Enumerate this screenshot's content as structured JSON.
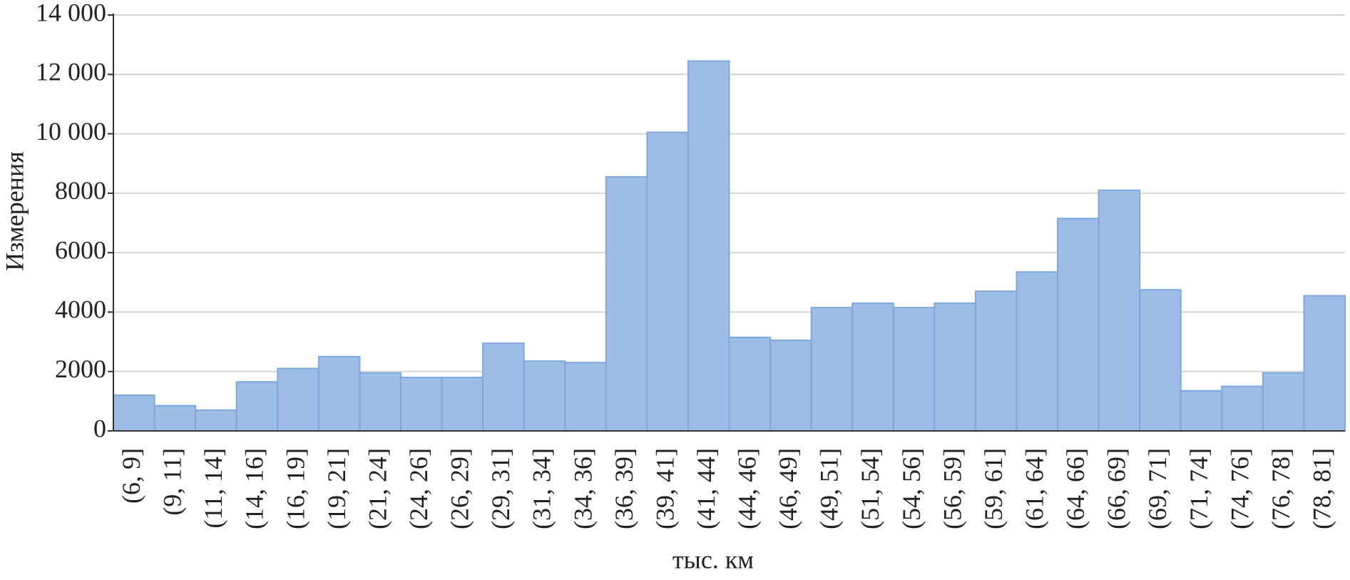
{
  "chart_data": {
    "type": "bar",
    "xlabel": "тыс. км",
    "ylabel": "Измерения",
    "categories": [
      "(6, 9]",
      "(9, 11]",
      "(11, 14]",
      "(14, 16]",
      "(16, 19]",
      "(19, 21]",
      "(21, 24]",
      "(24, 26]",
      "(26, 29]",
      "(29, 31]",
      "(31, 34]",
      "(34, 36]",
      "(36, 39]",
      "(39, 41]",
      "(41, 44]",
      "(44, 46]",
      "(46, 49]",
      "(49, 51]",
      "(51, 54]",
      "(54, 56]",
      "(56, 59]",
      "(59, 61]",
      "(61, 64]",
      "(64, 66]",
      "(66, 69]",
      "(69, 71]",
      "(71, 74]",
      "(74, 76]",
      "(76, 78]",
      "(78, 81]"
    ],
    "values": [
      1200,
      850,
      700,
      1650,
      2100,
      2500,
      1950,
      1800,
      1800,
      2950,
      2350,
      2300,
      8550,
      10050,
      12450,
      3150,
      3050,
      4150,
      4300,
      4150,
      4300,
      4700,
      5350,
      7150,
      8100,
      4750,
      1350,
      1500,
      1950,
      4550
    ],
    "color": "#9dbde6",
    "ylim": [
      0,
      14000
    ],
    "yticks": [
      0,
      2000,
      4000,
      6000,
      8000,
      {
        "value": 10000,
        "label": "10 000"
      },
      {
        "value": 12000,
        "label": "12 000"
      },
      {
        "value": 14000,
        "label": "14 000"
      }
    ],
    "grid": true
  }
}
